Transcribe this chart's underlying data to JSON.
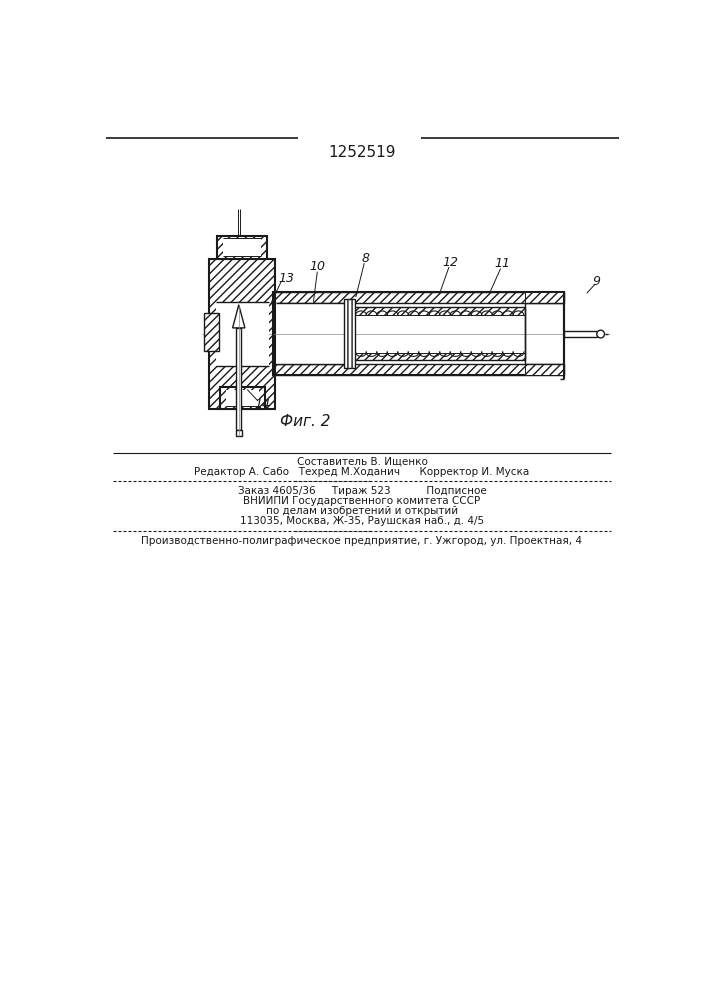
{
  "title": "1252519",
  "fig_label": "Фиг. 2",
  "background_color": "#ffffff",
  "line_color": "#1a1a1a",
  "footer_lines": [
    "Составитель В. Ищенко",
    "Редактор А. Сабо   Техред М.Ходанич      Корректор И. Муска",
    "Заказ 4605/36     Тираж 523           Подписное",
    "ВНИИПИ Государственного комитета СССР",
    "по делам изобретений и открытий",
    "113035, Москва, Ж-35, Раушская наб., д. 4/5",
    "Производственно-полиграфическое предприятие, г. Ужгород, ул. Проектная, 4"
  ]
}
